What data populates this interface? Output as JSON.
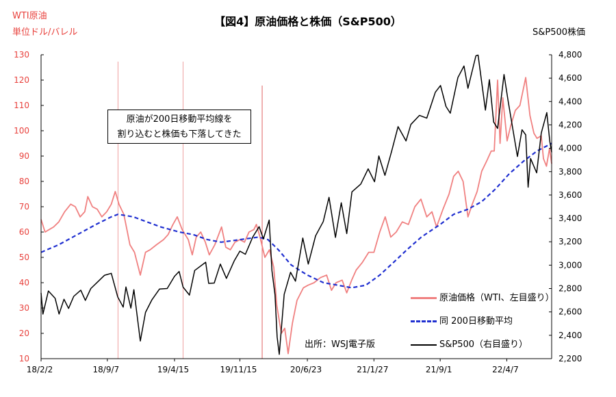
{
  "header": {
    "title": "【図4】原油価格と株価（S&P500）",
    "left_axis_label_1": "WTI原油",
    "left_axis_label_2": "単位ドル/バレル",
    "right_axis_label": "S&P500株価"
  },
  "annotation": {
    "line1": "原油が200日移動平均線を",
    "line2": "割り込むと株価も下落してきた"
  },
  "source": "出所：WSJ電子版",
  "colors": {
    "wti": "#f08080",
    "ma200": "#1f2fd0",
    "sp500": "#000000",
    "vline": "#f0a0a0",
    "vline_strong": "#e06060",
    "axis_left_text": "#e8413c"
  },
  "chart_data": {
    "type": "line",
    "x_axis": {
      "ticks": [
        "18/2/2",
        "18/9/7",
        "19/4/15",
        "19/11/15",
        "20/6/23",
        "21/1/27",
        "21/9/1",
        "22/4/7"
      ],
      "range": [
        "2018-02-02",
        "2022-09-01"
      ]
    },
    "y_left": {
      "ylim": [
        10,
        130
      ],
      "ticks": [
        "10",
        "20",
        "30",
        "40",
        "50",
        "60",
        "70",
        "80",
        "90",
        "100",
        "110",
        "120",
        "130"
      ]
    },
    "y_right": {
      "ylim": [
        2200,
        4800
      ],
      "ticks": [
        "2,200",
        "2,400",
        "2,600",
        "2,800",
        "3,000",
        "3,200",
        "3,400",
        "3,600",
        "3,800",
        "4,000",
        "4,200",
        "4,400",
        "4,600",
        "4,800"
      ]
    },
    "vertical_markers": [
      "2018-10-12",
      "2019-05-13",
      "2020-01-27"
    ],
    "series": [
      {
        "name": "原油価格（WTI、左目盛り）",
        "axis": "left",
        "points": [
          [
            "2018-02-02",
            65
          ],
          [
            "2018-02-15",
            60
          ],
          [
            "2018-03-01",
            61
          ],
          [
            "2018-03-15",
            62
          ],
          [
            "2018-04-01",
            64
          ],
          [
            "2018-04-20",
            68
          ],
          [
            "2018-05-10",
            71
          ],
          [
            "2018-05-25",
            70
          ],
          [
            "2018-06-10",
            66
          ],
          [
            "2018-06-25",
            68
          ],
          [
            "2018-07-05",
            74
          ],
          [
            "2018-07-20",
            70
          ],
          [
            "2018-08-05",
            69
          ],
          [
            "2018-08-20",
            66
          ],
          [
            "2018-09-05",
            68
          ],
          [
            "2018-09-20",
            71
          ],
          [
            "2018-10-03",
            76
          ],
          [
            "2018-10-15",
            71
          ],
          [
            "2018-10-31",
            67
          ],
          [
            "2018-11-10",
            61
          ],
          [
            "2018-11-20",
            55
          ],
          [
            "2018-12-05",
            52
          ],
          [
            "2018-12-24",
            43
          ],
          [
            "2019-01-10",
            52
          ],
          [
            "2019-01-25",
            53
          ],
          [
            "2019-02-15",
            55
          ],
          [
            "2019-03-10",
            57
          ],
          [
            "2019-03-25",
            59
          ],
          [
            "2019-04-10",
            63
          ],
          [
            "2019-04-24",
            66
          ],
          [
            "2019-05-10",
            61
          ],
          [
            "2019-05-30",
            57
          ],
          [
            "2019-06-12",
            51
          ],
          [
            "2019-06-25",
            58
          ],
          [
            "2019-07-10",
            60
          ],
          [
            "2019-07-25",
            56
          ],
          [
            "2019-08-07",
            51
          ],
          [
            "2019-08-25",
            55
          ],
          [
            "2019-09-16",
            62
          ],
          [
            "2019-09-30",
            54
          ],
          [
            "2019-10-15",
            53
          ],
          [
            "2019-10-30",
            56
          ],
          [
            "2019-11-15",
            57
          ],
          [
            "2019-11-30",
            56
          ],
          [
            "2019-12-15",
            60
          ],
          [
            "2019-12-31",
            61
          ],
          [
            "2020-01-08",
            63
          ],
          [
            "2020-01-20",
            58
          ],
          [
            "2020-02-05",
            50
          ],
          [
            "2020-02-20",
            53
          ],
          [
            "2020-03-05",
            46
          ],
          [
            "2020-03-15",
            31
          ],
          [
            "2020-03-30",
            20
          ],
          [
            "2020-04-10",
            22
          ],
          [
            "2020-04-21",
            12
          ],
          [
            "2020-05-05",
            24
          ],
          [
            "2020-05-20",
            33
          ],
          [
            "2020-06-10",
            38
          ],
          [
            "2020-06-25",
            39
          ],
          [
            "2020-07-15",
            40
          ],
          [
            "2020-08-05",
            42
          ],
          [
            "2020-08-25",
            43
          ],
          [
            "2020-09-10",
            37
          ],
          [
            "2020-09-25",
            40
          ],
          [
            "2020-10-15",
            41
          ],
          [
            "2020-10-30",
            36
          ],
          [
            "2020-11-15",
            41
          ],
          [
            "2020-11-30",
            45
          ],
          [
            "2020-12-20",
            48
          ],
          [
            "2021-01-10",
            52
          ],
          [
            "2021-01-27",
            52
          ],
          [
            "2021-02-15",
            60
          ],
          [
            "2021-03-05",
            66
          ],
          [
            "2021-03-23",
            58
          ],
          [
            "2021-04-10",
            60
          ],
          [
            "2021-04-30",
            64
          ],
          [
            "2021-05-20",
            63
          ],
          [
            "2021-06-10",
            70
          ],
          [
            "2021-06-30",
            73
          ],
          [
            "2021-07-19",
            66
          ],
          [
            "2021-08-05",
            68
          ],
          [
            "2021-08-20",
            62
          ],
          [
            "2021-09-10",
            69
          ],
          [
            "2021-09-30",
            75
          ],
          [
            "2021-10-15",
            82
          ],
          [
            "2021-10-30",
            84
          ],
          [
            "2021-11-15",
            80
          ],
          [
            "2021-12-01",
            66
          ],
          [
            "2021-12-15",
            71
          ],
          [
            "2021-12-31",
            76
          ],
          [
            "2022-01-15",
            84
          ],
          [
            "2022-01-31",
            88
          ],
          [
            "2022-02-15",
            92
          ],
          [
            "2022-02-25",
            92
          ],
          [
            "2022-03-08",
            120
          ],
          [
            "2022-03-16",
            95
          ],
          [
            "2022-03-25",
            113
          ],
          [
            "2022-04-08",
            96
          ],
          [
            "2022-04-20",
            102
          ],
          [
            "2022-05-05",
            108
          ],
          [
            "2022-05-20",
            110
          ],
          [
            "2022-06-08",
            121
          ],
          [
            "2022-06-22",
            106
          ],
          [
            "2022-07-05",
            99
          ],
          [
            "2022-07-15",
            97
          ],
          [
            "2022-07-29",
            98
          ],
          [
            "2022-08-05",
            89
          ],
          [
            "2022-08-15",
            86
          ],
          [
            "2022-08-25",
            93
          ],
          [
            "2022-09-01",
            87
          ]
        ]
      },
      {
        "name": "同 200日移動平均",
        "axis": "left",
        "points": [
          [
            "2018-02-02",
            52
          ],
          [
            "2018-04-01",
            55
          ],
          [
            "2018-06-01",
            59
          ],
          [
            "2018-08-01",
            63
          ],
          [
            "2018-09-20",
            66
          ],
          [
            "2018-10-12",
            67
          ],
          [
            "2018-12-01",
            66
          ],
          [
            "2019-01-15",
            64
          ],
          [
            "2019-03-01",
            62
          ],
          [
            "2019-05-01",
            60
          ],
          [
            "2019-06-15",
            59
          ],
          [
            "2019-08-01",
            57
          ],
          [
            "2019-09-15",
            56
          ],
          [
            "2019-11-15",
            57
          ],
          [
            "2020-01-15",
            58
          ],
          [
            "2020-02-15",
            57
          ],
          [
            "2020-03-20",
            53
          ],
          [
            "2020-05-01",
            47
          ],
          [
            "2020-06-23",
            43
          ],
          [
            "2020-08-15",
            40
          ],
          [
            "2020-10-01",
            39
          ],
          [
            "2020-11-15",
            38
          ],
          [
            "2020-12-31",
            39
          ],
          [
            "2021-02-15",
            43
          ],
          [
            "2021-04-01",
            48
          ],
          [
            "2021-05-15",
            53
          ],
          [
            "2021-07-01",
            58
          ],
          [
            "2021-09-01",
            63
          ],
          [
            "2021-10-15",
            67
          ],
          [
            "2021-12-01",
            69
          ],
          [
            "2022-01-15",
            72
          ],
          [
            "2022-03-01",
            77
          ],
          [
            "2022-04-15",
            83
          ],
          [
            "2022-06-01",
            88
          ],
          [
            "2022-07-15",
            92
          ],
          [
            "2022-09-01",
            95
          ]
        ]
      },
      {
        "name": "S&P500（右目盛り）",
        "axis": "right",
        "points": [
          [
            "2018-02-02",
            2762
          ],
          [
            "2018-02-08",
            2581
          ],
          [
            "2018-02-26",
            2779
          ],
          [
            "2018-03-20",
            2717
          ],
          [
            "2018-04-02",
            2582
          ],
          [
            "2018-04-18",
            2708
          ],
          [
            "2018-05-03",
            2630
          ],
          [
            "2018-05-20",
            2733
          ],
          [
            "2018-06-12",
            2786
          ],
          [
            "2018-06-27",
            2699
          ],
          [
            "2018-07-15",
            2800
          ],
          [
            "2018-08-07",
            2858
          ],
          [
            "2018-08-29",
            2914
          ],
          [
            "2018-09-20",
            2930
          ],
          [
            "2018-10-11",
            2728
          ],
          [
            "2018-10-29",
            2641
          ],
          [
            "2018-11-07",
            2813
          ],
          [
            "2018-11-23",
            2633
          ],
          [
            "2018-12-03",
            2790
          ],
          [
            "2018-12-24",
            2351
          ],
          [
            "2019-01-10",
            2596
          ],
          [
            "2019-01-31",
            2704
          ],
          [
            "2019-02-25",
            2796
          ],
          [
            "2019-03-22",
            2800
          ],
          [
            "2019-04-15",
            2905
          ],
          [
            "2019-04-30",
            2946
          ],
          [
            "2019-05-13",
            2812
          ],
          [
            "2019-06-03",
            2744
          ],
          [
            "2019-06-20",
            2954
          ],
          [
            "2019-07-26",
            3025
          ],
          [
            "2019-08-05",
            2844
          ],
          [
            "2019-08-23",
            2847
          ],
          [
            "2019-09-12",
            3009
          ],
          [
            "2019-10-02",
            2887
          ],
          [
            "2019-10-28",
            3039
          ],
          [
            "2019-11-15",
            3120
          ],
          [
            "2019-12-03",
            3093
          ],
          [
            "2019-12-27",
            3240
          ],
          [
            "2020-01-17",
            3329
          ],
          [
            "2020-01-31",
            3225
          ],
          [
            "2020-02-19",
            3386
          ],
          [
            "2020-02-28",
            2954
          ],
          [
            "2020-03-09",
            2746
          ],
          [
            "2020-03-16",
            2386
          ],
          [
            "2020-03-23",
            2237
          ],
          [
            "2020-04-08",
            2750
          ],
          [
            "2020-04-29",
            2939
          ],
          [
            "2020-05-15",
            2863
          ],
          [
            "2020-06-08",
            3232
          ],
          [
            "2020-06-26",
            3009
          ],
          [
            "2020-07-20",
            3251
          ],
          [
            "2020-08-14",
            3373
          ],
          [
            "2020-09-02",
            3580
          ],
          [
            "2020-09-23",
            3237
          ],
          [
            "2020-10-12",
            3534
          ],
          [
            "2020-10-30",
            3270
          ],
          [
            "2020-11-16",
            3627
          ],
          [
            "2020-12-15",
            3694
          ],
          [
            "2021-01-08",
            3824
          ],
          [
            "2021-01-29",
            3714
          ],
          [
            "2021-02-12",
            3934
          ],
          [
            "2021-03-04",
            3768
          ],
          [
            "2021-03-26",
            3975
          ],
          [
            "2021-04-16",
            4185
          ],
          [
            "2021-05-12",
            4063
          ],
          [
            "2021-05-28",
            4204
          ],
          [
            "2021-06-25",
            4281
          ],
          [
            "2021-07-19",
            4258
          ],
          [
            "2021-08-16",
            4479
          ],
          [
            "2021-09-02",
            4537
          ],
          [
            "2021-09-20",
            4358
          ],
          [
            "2021-10-04",
            4300
          ],
          [
            "2021-10-29",
            4605
          ],
          [
            "2021-11-18",
            4704
          ],
          [
            "2021-12-01",
            4513
          ],
          [
            "2021-12-27",
            4791
          ],
          [
            "2022-01-03",
            4797
          ],
          [
            "2022-01-27",
            4326
          ],
          [
            "2022-02-09",
            4587
          ],
          [
            "2022-02-23",
            4225
          ],
          [
            "2022-03-08",
            4170
          ],
          [
            "2022-03-29",
            4631
          ],
          [
            "2022-04-12",
            4397
          ],
          [
            "2022-04-29",
            4132
          ],
          [
            "2022-05-12",
            3930
          ],
          [
            "2022-05-27",
            4158
          ],
          [
            "2022-06-08",
            4115
          ],
          [
            "2022-06-16",
            3667
          ],
          [
            "2022-06-24",
            3912
          ],
          [
            "2022-07-14",
            3790
          ],
          [
            "2022-07-29",
            4130
          ],
          [
            "2022-08-16",
            4305
          ],
          [
            "2022-08-26",
            4058
          ],
          [
            "2022-09-01",
            3966
          ]
        ]
      }
    ]
  }
}
